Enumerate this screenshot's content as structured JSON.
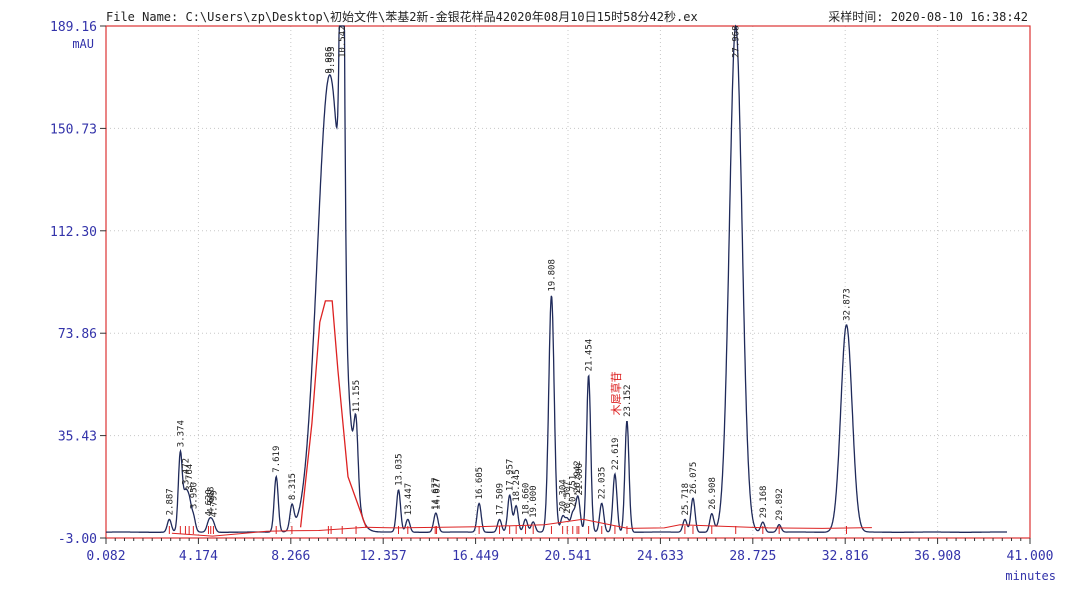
{
  "header": {
    "file_name": "File Name: C:\\Users\\zp\\Desktop\\初始文件\\苯基2新-金银花样品42020年08月10日15时58分42秒.ex",
    "sample_time": "采样时间: 2020-08-10 16:38:42"
  },
  "chart_data": {
    "type": "line",
    "title": "",
    "xlabel": "minutes",
    "ylabel": "mAU",
    "xlim": [
      0.082,
      41.0
    ],
    "ylim": [
      -3.0,
      189.16
    ],
    "x_ticks": [
      "0.082",
      "4.174",
      "8.266",
      "12.357",
      "16.449",
      "20.541",
      "24.633",
      "28.725",
      "32.816",
      "36.908",
      "41.000"
    ],
    "y_ticks": [
      "-3.00",
      "35.43",
      "73.86",
      "112.30",
      "150.73",
      "189.16"
    ],
    "grid": true,
    "colors": {
      "trace": "#1f2a5a",
      "baseline": "#dd2222",
      "frame": "#dd3333",
      "axis_text": "#3333aa"
    },
    "peaks": [
      {
        "label": "2.887",
        "rt": 2.887,
        "h": 4
      },
      {
        "label": "3.374",
        "rt": 3.374,
        "h": 29
      },
      {
        "label": "3.472",
        "rt": 3.6,
        "h": 12
      },
      {
        "label": "3.764",
        "rt": 3.764,
        "h": 10
      },
      {
        "label": "3.950",
        "rt": 3.95,
        "h": 5
      },
      {
        "label": "4.620",
        "rt": 4.62,
        "h": 2
      },
      {
        "label": "4.668",
        "rt": 4.72,
        "h": 2
      },
      {
        "label": "4.799",
        "rt": 4.84,
        "h": 2
      },
      {
        "label": "7.619",
        "rt": 7.619,
        "h": 20
      },
      {
        "label": "8.315",
        "rt": 8.315,
        "h": 8
      },
      {
        "label": "9.986",
        "rt": 9.93,
        "h": 85
      },
      {
        "label": "9.993",
        "rt": 10.05,
        "h": 86
      },
      {
        "label": "10.542",
        "rt": 10.542,
        "h": 189.16
      },
      {
        "label": "11.155",
        "rt": 11.155,
        "h": 24
      },
      {
        "label": "13.035",
        "rt": 13.035,
        "h": 15
      },
      {
        "label": "13.447",
        "rt": 13.447,
        "h": 4
      },
      {
        "label": "14.677",
        "rt": 14.66,
        "h": 3
      },
      {
        "label": "14.627",
        "rt": 14.72,
        "h": 3
      },
      {
        "label": "16.605",
        "rt": 16.605,
        "h": 10
      },
      {
        "label": "17.509",
        "rt": 17.509,
        "h": 4
      },
      {
        "label": "17.957",
        "rt": 17.957,
        "h": 13
      },
      {
        "label": "18.245",
        "rt": 18.245,
        "h": 9
      },
      {
        "label": "18.660",
        "rt": 18.66,
        "h": 4
      },
      {
        "label": "19.000",
        "rt": 19.0,
        "h": 3
      },
      {
        "label": "19.808",
        "rt": 19.808,
        "h": 88
      },
      {
        "label": "20.304",
        "rt": 20.304,
        "h": 5
      },
      {
        "label": "20.507",
        "rt": 20.507,
        "h": 4
      },
      {
        "label": "20.751",
        "rt": 20.751,
        "h": 6
      },
      {
        "label": "20.942",
        "rt": 20.942,
        "h": 7
      },
      {
        "label": "21.000",
        "rt": 21.02,
        "h": 6
      },
      {
        "label": "21.454",
        "rt": 21.454,
        "h": 58
      },
      {
        "label": "22.035",
        "rt": 22.035,
        "h": 10
      },
      {
        "label": "22.619",
        "rt": 22.619,
        "h": 21
      },
      {
        "label": "23.152",
        "rt": 23.152,
        "h": 41
      },
      {
        "label": "25.718",
        "rt": 25.718,
        "h": 4
      },
      {
        "label": "26.075",
        "rt": 26.075,
        "h": 12
      },
      {
        "label": "26.908",
        "rt": 26.908,
        "h": 6
      },
      {
        "label": "27.968",
        "rt": 27.968,
        "h": 189.16
      },
      {
        "label": "29.168",
        "rt": 29.168,
        "h": 3
      },
      {
        "label": "29.892",
        "rt": 29.892,
        "h": 2
      },
      {
        "label": "32.873",
        "rt": 32.873,
        "h": 77
      }
    ],
    "annotations": [
      {
        "text": "木犀草苷",
        "rt": 22.85,
        "color": "#dd2222"
      }
    ]
  }
}
